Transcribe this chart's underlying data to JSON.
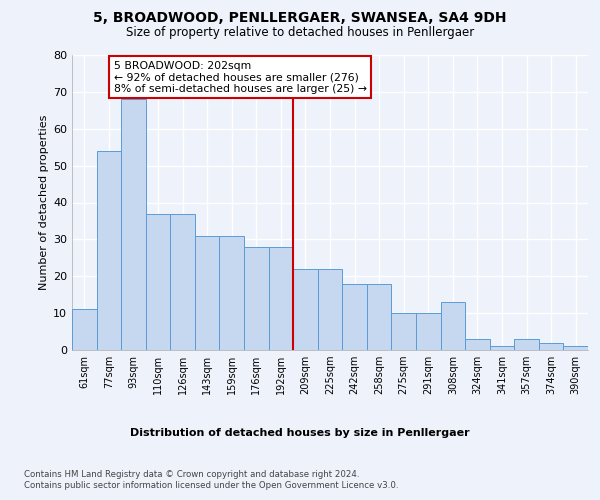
{
  "title": "5, BROADWOOD, PENLLERGAER, SWANSEA, SA4 9DH",
  "subtitle": "Size of property relative to detached houses in Penllergaer",
  "xlabel": "Distribution of detached houses by size in Penllergaer",
  "ylabel": "Number of detached properties",
  "bar_labels": [
    "61sqm",
    "77sqm",
    "93sqm",
    "110sqm",
    "126sqm",
    "143sqm",
    "159sqm",
    "176sqm",
    "192sqm",
    "209sqm",
    "225sqm",
    "242sqm",
    "258sqm",
    "275sqm",
    "291sqm",
    "308sqm",
    "324sqm",
    "341sqm",
    "357sqm",
    "374sqm",
    "390sqm"
  ],
  "bar_values": [
    11,
    54,
    68,
    37,
    37,
    31,
    31,
    28,
    28,
    22,
    22,
    18,
    18,
    10,
    10,
    13,
    3,
    1,
    3,
    2,
    1
  ],
  "ylim": [
    0,
    80
  ],
  "yticks": [
    0,
    10,
    20,
    30,
    40,
    50,
    60,
    70,
    80
  ],
  "bar_color": "#c5d8f0",
  "bar_edge_color": "#5b9bd5",
  "vline_color": "#cc0000",
  "vline_x_index": 9,
  "annotation_title": "5 BROADWOOD: 202sqm",
  "annotation_line1": "← 92% of detached houses are smaller (276)",
  "annotation_line2": "8% of semi-detached houses are larger (25) →",
  "annotation_box_edgecolor": "#cc0000",
  "footer_line1": "Contains HM Land Registry data © Crown copyright and database right 2024.",
  "footer_line2": "Contains public sector information licensed under the Open Government Licence v3.0.",
  "bg_color": "#eef2fb",
  "plot_bg_color": "#eef2fb",
  "grid_color": "#ffffff"
}
